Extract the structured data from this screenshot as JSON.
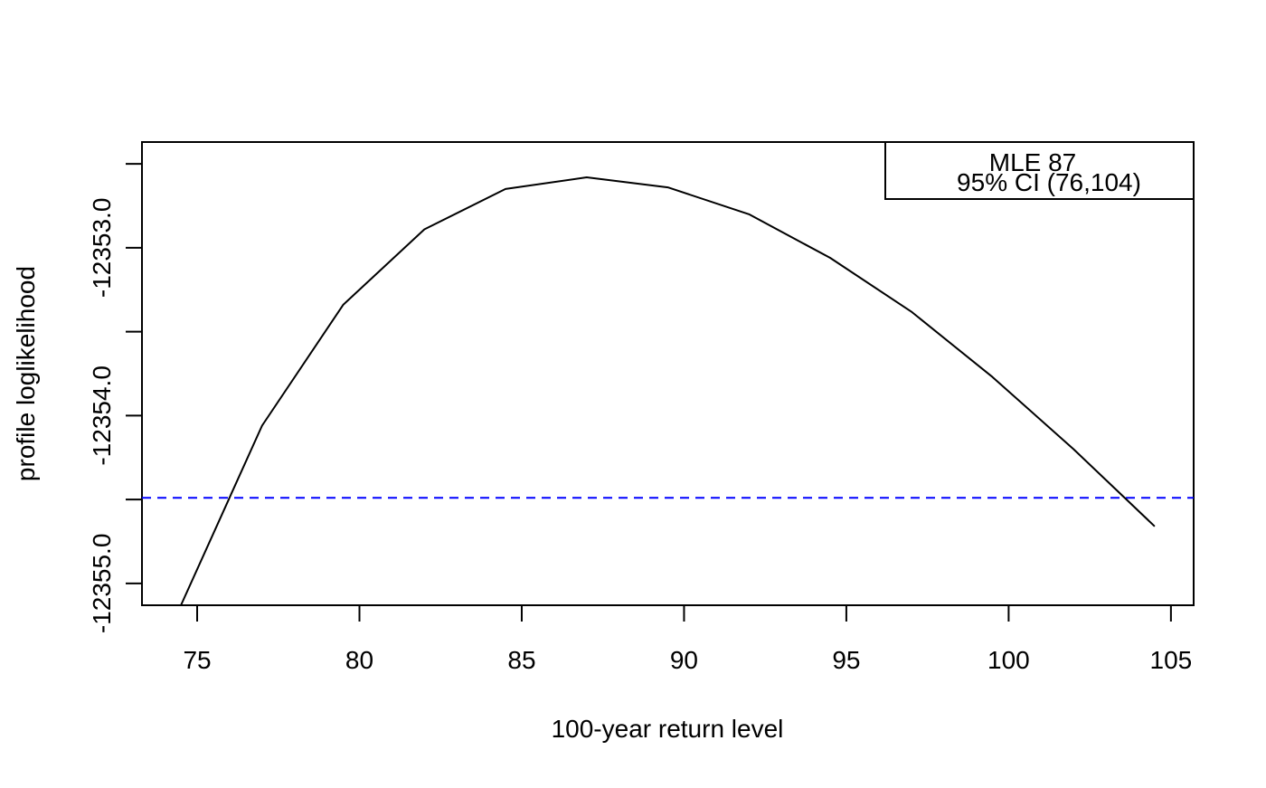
{
  "chart_data": {
    "type": "line",
    "title": "",
    "xlabel": "100-year return level",
    "ylabel": "profile loglikelihood",
    "xlim": [
      73.3,
      105.7
    ],
    "ylim": [
      -12355.13,
      -12352.37
    ],
    "x_ticks": [
      75,
      80,
      85,
      90,
      95,
      100,
      105
    ],
    "x_tick_labels": [
      "75",
      "80",
      "85",
      "90",
      "95",
      "100",
      "105"
    ],
    "y_ticks": [
      -12355.0,
      -12354.5,
      -12354.0,
      -12353.5,
      -12353.0,
      -12352.5
    ],
    "y_tick_labels": [
      "-12355.0",
      "",
      "-12354.0",
      "",
      "-12353.0",
      ""
    ],
    "grid": false,
    "series": [
      {
        "x": [
          74.5,
          77.0,
          79.5,
          82.0,
          84.5,
          87.0,
          89.5,
          92.0,
          94.5,
          97.0,
          99.5,
          102.0,
          104.5
        ],
        "y": [
          -12355.13,
          -12354.06,
          -12353.34,
          -12352.89,
          -12352.65,
          -12352.58,
          -12352.64,
          -12352.8,
          -12353.06,
          -12353.38,
          -12353.77,
          -12354.2,
          -12354.66
        ],
        "color": "#000000"
      }
    ],
    "reference_lines": [
      {
        "y": -12354.49,
        "style": "dashed",
        "color": "#0000ff"
      }
    ],
    "legend": {
      "placement": "top-right",
      "entries": [
        "MLE 87",
        "95% CI (76,104)"
      ]
    }
  }
}
